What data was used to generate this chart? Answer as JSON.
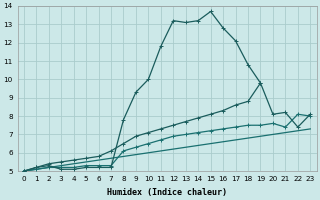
{
  "xlabel": "Humidex (Indice chaleur)",
  "xlim": [
    -0.5,
    23.5
  ],
  "ylim": [
    5,
    14
  ],
  "xticks": [
    0,
    1,
    2,
    3,
    4,
    5,
    6,
    7,
    8,
    9,
    10,
    11,
    12,
    13,
    14,
    15,
    16,
    17,
    18,
    19,
    20,
    21,
    22,
    23
  ],
  "yticks": [
    5,
    6,
    7,
    8,
    9,
    10,
    11,
    12,
    13,
    14
  ],
  "bg_color": "#cce8e8",
  "grid_color": "#aacccc",
  "line_color_dark": "#1a5c5c",
  "line_color_mid": "#1a7070",
  "curve1_x": [
    0,
    1,
    2,
    3,
    4,
    5,
    6,
    7,
    8,
    9,
    10,
    11,
    12,
    13,
    14,
    15,
    16,
    17,
    18,
    19
  ],
  "curve1_y": [
    5.0,
    5.2,
    5.3,
    5.1,
    5.1,
    5.2,
    5.2,
    5.2,
    7.8,
    9.3,
    10.0,
    11.8,
    13.2,
    13.1,
    13.2,
    13.7,
    12.8,
    12.1,
    10.8,
    9.8
  ],
  "curve2_x": [
    0,
    1,
    2,
    3,
    4,
    5,
    6,
    7,
    8,
    9,
    10,
    11,
    12,
    13,
    14,
    15,
    16,
    17,
    18,
    19,
    20,
    21,
    22,
    23
  ],
  "curve2_y": [
    5.0,
    5.2,
    5.4,
    5.5,
    5.6,
    5.7,
    5.8,
    6.1,
    6.5,
    6.9,
    7.1,
    7.3,
    7.5,
    7.7,
    7.9,
    8.1,
    8.3,
    8.6,
    8.8,
    9.8,
    8.1,
    8.2,
    7.4,
    8.1
  ],
  "curve3_x": [
    0,
    1,
    2,
    3,
    4,
    5,
    6,
    7,
    8,
    9,
    10,
    11,
    12,
    13,
    14,
    15,
    16,
    17,
    18,
    19,
    20,
    21,
    22,
    23
  ],
  "curve3_y": [
    5.0,
    5.1,
    5.2,
    5.2,
    5.2,
    5.3,
    5.3,
    5.3,
    6.1,
    6.3,
    6.5,
    6.7,
    6.9,
    7.0,
    7.1,
    7.2,
    7.3,
    7.4,
    7.5,
    7.5,
    7.6,
    7.4,
    8.1,
    8.0
  ],
  "curve4_x": [
    0,
    23
  ],
  "curve4_y": [
    5.0,
    7.3
  ]
}
